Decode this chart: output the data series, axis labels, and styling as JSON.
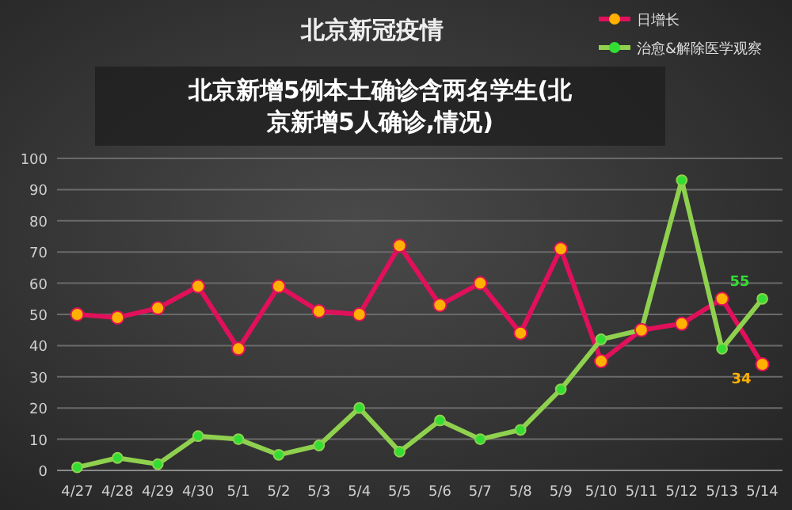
{
  "chart_data": {
    "type": "line",
    "title": "北京新冠疫情",
    "annotations": [
      "北京新增5例本土确诊含两名学生(北京新增5人确诊,情况)"
    ],
    "categories": [
      "4/27",
      "4/28",
      "4/29",
      "4/30",
      "5/1",
      "5/2",
      "5/3",
      "5/4",
      "5/5",
      "5/6",
      "5/7",
      "5/8",
      "5/9",
      "5/10",
      "5/11",
      "5/12",
      "5/13",
      "5/14"
    ],
    "series": [
      {
        "name": "日增长",
        "color": "#e0105a",
        "values": [
          50,
          49,
          52,
          59,
          39,
          59,
          51,
          50,
          72,
          53,
          60,
          44,
          71,
          35,
          45,
          47,
          55,
          34
        ],
        "value_labels": [
          null,
          null,
          null,
          null,
          null,
          null,
          null,
          null,
          null,
          null,
          null,
          null,
          null,
          null,
          null,
          null,
          null,
          "34"
        ]
      },
      {
        "name": "治愈&解除医学观察",
        "color": "#8fd14f",
        "values": [
          1,
          4,
          2,
          11,
          10,
          5,
          8,
          20,
          6,
          16,
          10,
          13,
          26,
          42,
          45,
          93,
          39,
          55
        ],
        "value_labels": [
          null,
          null,
          null,
          null,
          null,
          null,
          null,
          null,
          null,
          null,
          null,
          null,
          null,
          null,
          null,
          null,
          null,
          "55"
        ]
      }
    ],
    "ylim": [
      0,
      100
    ],
    "yticks": [
      0,
      10,
      20,
      30,
      40,
      50,
      60,
      70,
      80,
      90,
      100
    ],
    "grid": "y",
    "legend": "top right",
    "marker": "circle",
    "line_style": "solid"
  }
}
